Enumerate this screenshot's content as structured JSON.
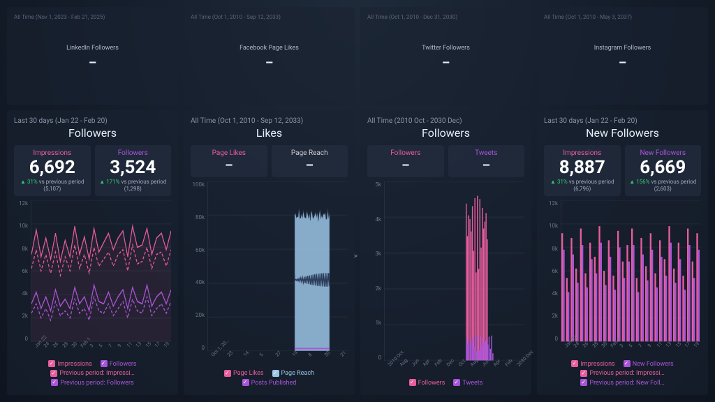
{
  "colors": {
    "pink": "#e85d9e",
    "purple": "#a855d9",
    "blue": "#9ac5e6",
    "grid": "#2a3548"
  },
  "topCards": [
    {
      "range": "All Time (Nov 1, 2023 - Feb 21, 2025)",
      "title": "LinkedIn Followers",
      "value": "–"
    },
    {
      "range": "All Time (Oct 1, 2010 - Sep 12, 2033)",
      "title": "Facebook Page Likes",
      "value": "–"
    },
    {
      "range": "All Time (Oct 1, 2010 - Dec 31, 2030)",
      "title": "Twitter Followers",
      "value": "–"
    },
    {
      "range": "All Time (Oct 1, 2010 - May 3, 2037)",
      "title": "Instagram Followers",
      "value": "–"
    }
  ],
  "panels": [
    {
      "range": "Last 30 days (Jan 22 - Feb 20)",
      "title": "Followers",
      "stats": [
        {
          "label": "Impressions",
          "labelColor": "#e85d9e",
          "value": "6,692",
          "pct": "31%",
          "vs": "vs previous period (5,107)"
        },
        {
          "label": "Followers",
          "labelColor": "#a855d9",
          "value": "3,524",
          "pct": "171%",
          "vs": "vs previous period (1,298)"
        }
      ],
      "chart": {
        "type": "line",
        "yTicks": [
          "12k",
          "10k",
          "8k",
          "6k",
          "4k",
          "2k",
          "0"
        ],
        "yMax": 12000,
        "xLabels": [
          "Jan 22",
          "24",
          "26",
          "28",
          "30",
          "Feb 1",
          "3",
          "5",
          "7",
          "9",
          "11",
          "13",
          "15",
          "17",
          "19"
        ],
        "series": [
          {
            "color": "#e85d9e",
            "dash": false,
            "data": [
              7400,
              9500,
              7200,
              8800,
              7000,
              9200,
              6800,
              8600,
              7200,
              9800,
              7400,
              8900,
              7000,
              9600,
              7600,
              8400,
              9200,
              7800,
              8800,
              9400,
              7200,
              9800,
              8000,
              8200,
              9600,
              7400,
              8800,
              9200,
              7800,
              9400
            ]
          },
          {
            "color": "#e85d9e",
            "dash": true,
            "data": [
              6200,
              7800,
              6000,
              7400,
              5800,
              7600,
              5600,
              7200,
              6000,
              8200,
              6200,
              7400,
              5800,
              8000,
              6400,
              7000,
              7600,
              6400,
              7400,
              7800,
              6000,
              8200,
              6600,
              6800,
              8000,
              6200,
              7400,
              7600,
              6400,
              7800
            ]
          },
          {
            "color": "#a855d9",
            "dash": false,
            "data": [
              3200,
              4200,
              2800,
              3800,
              2600,
              4400,
              3000,
              3600,
              2800,
              4600,
              3200,
              3800,
              2600,
              4800,
              3400,
              3200,
              4200,
              3000,
              3800,
              4400,
              2800,
              4600,
              3400,
              3200,
              4800,
              3000,
              3800,
              4200,
              3200,
              4400
            ]
          },
          {
            "color": "#a855d9",
            "dash": true,
            "data": [
              2400,
              3200,
              2000,
              2800,
              1800,
              3400,
              2200,
              2600,
              2000,
              3600,
              2400,
              2800,
              1800,
              3800,
              2600,
              2400,
              3200,
              2200,
              2800,
              3400,
              2000,
              3600,
              2600,
              2400,
              3800,
              2200,
              2800,
              3200,
              2400,
              3400
            ]
          }
        ]
      },
      "legend": [
        {
          "color": "#e85d9e",
          "label": "Impressions"
        },
        {
          "color": "#a855d9",
          "label": "Followers"
        },
        {
          "color": "#e85d9e",
          "label": "Previous period: Impressi…"
        },
        {
          "color": "#a855d9",
          "label": "Previous period: Followers"
        }
      ]
    },
    {
      "range": "All Time (Oct 1, 2010 - Sep 12, 2033)",
      "title": "Likes",
      "stats": [
        {
          "label": "Page Likes",
          "labelColor": "#e85d9e",
          "value": "–"
        },
        {
          "label": "Page Reach",
          "labelColor": "#cccccc",
          "value": "–"
        }
      ],
      "chart": {
        "type": "area-block",
        "yTicks": [
          "100k",
          "80k",
          "60k",
          "40k",
          "20k",
          "0"
        ],
        "yMax": 100000,
        "xLabels": [
          "Oct 1, 20…",
          "23",
          "14",
          "5",
          "27",
          "19",
          "8",
          "30",
          "21"
        ],
        "block": {
          "xStartFrac": 0.62,
          "xEndFrac": 0.87,
          "topBase": 80000,
          "topJitter": 4000,
          "color": "#9ac5e6",
          "edgeColor": "#3a4a68"
        },
        "flatline": {
          "y": 1500,
          "xStart": 0.62,
          "xEnd": 0.87,
          "color": "#a855d9"
        }
      },
      "legend": [
        {
          "color": "#e85d9e",
          "label": "Page Likes"
        },
        {
          "color": "#9ac5e6",
          "label": "Page Reach"
        },
        {
          "color": "#a855d9",
          "label": "Posts Published"
        }
      ],
      "hasArrow": true
    },
    {
      "range": "All Time (2010 Oct - 2030 Dec)",
      "title": "Followers",
      "stats": [
        {
          "label": "Followers",
          "labelColor": "#e85d9e",
          "value": "–"
        },
        {
          "label": "Tweets",
          "labelColor": "#a855d9",
          "value": "–"
        }
      ],
      "chart": {
        "type": "dense-bars",
        "yTicks": [
          "5k",
          "4k",
          "3k",
          "2k",
          "1k",
          "0"
        ],
        "yMax": 5000,
        "xLabels": [
          "2010 Oct",
          "Aug",
          "Jun",
          "Apr",
          "Feb",
          "Dec",
          "Oct",
          "Aug",
          "Jun",
          "Apr",
          "Feb",
          "2030 Dec"
        ],
        "cluster": {
          "xStartFrac": 0.58,
          "xEndFrac": 0.74,
          "count": 18,
          "min": 2200,
          "max": 4600,
          "color": "#e85d9e"
        },
        "cluster2": {
          "xStartFrac": 0.58,
          "xEndFrac": 0.78,
          "count": 22,
          "min": 200,
          "max": 700,
          "color": "#a855d9"
        }
      },
      "legend": [
        {
          "color": "#e85d9e",
          "label": "Followers"
        },
        {
          "color": "#a855d9",
          "label": "Tweets"
        }
      ]
    },
    {
      "range": "Last 30 days (Jan 22 - Feb 20)",
      "title": "New Followers",
      "stats": [
        {
          "label": "Impressions",
          "labelColor": "#e85d9e",
          "value": "8,887",
          "pct": "31%",
          "vs": "vs previous period (6,796)"
        },
        {
          "label": "New Followers",
          "labelColor": "#a855d9",
          "value": "6,669",
          "pct": "156%",
          "vs": "vs previous period (2,603)"
        }
      ],
      "chart": {
        "type": "grouped-bars",
        "yTicks": [
          "12k",
          "10k",
          "8k",
          "6k",
          "4k",
          "2k",
          "0"
        ],
        "yMax": 12000,
        "xLabels": [
          "Jan 22",
          "24",
          "26",
          "28",
          "30",
          "Feb 1",
          "3",
          "5",
          "7",
          "9",
          "11",
          "13",
          "15",
          "17",
          "19"
        ],
        "bars": {
          "count": 30,
          "seriesA": {
            "color": "#e85d9e",
            "data": [
              9200,
              5400,
              8800,
              6200,
              9600,
              5800,
              8400,
              7200,
              9800,
              6000,
              8600,
              5600,
              9400,
              6800,
              8200,
              9600,
              5400,
              8800,
              6400,
              9200,
              5800,
              8600,
              7000,
              9800,
              6200,
              8400,
              5600,
              9600,
              6800,
              9200
            ]
          },
          "seriesB": {
            "color": "#a855d9",
            "data": [
              7800,
              4200,
              7400,
              5000,
              8200,
              4600,
              7000,
              5800,
              8400,
              4800,
              7200,
              4400,
              8000,
              5400,
              6800,
              8200,
              4200,
              7400,
              5200,
              7800,
              4600,
              7200,
              5600,
              8400,
              5000,
              7000,
              4400,
              8200,
              5400,
              7800
            ]
          }
        }
      },
      "legend": [
        {
          "color": "#e85d9e",
          "label": "Impressions"
        },
        {
          "color": "#a855d9",
          "label": "New Followers"
        },
        {
          "color": "#e85d9e",
          "label": "Previous period: Impressi…"
        },
        {
          "color": "#a855d9",
          "label": "Previous period: New Foll…"
        }
      ]
    }
  ]
}
